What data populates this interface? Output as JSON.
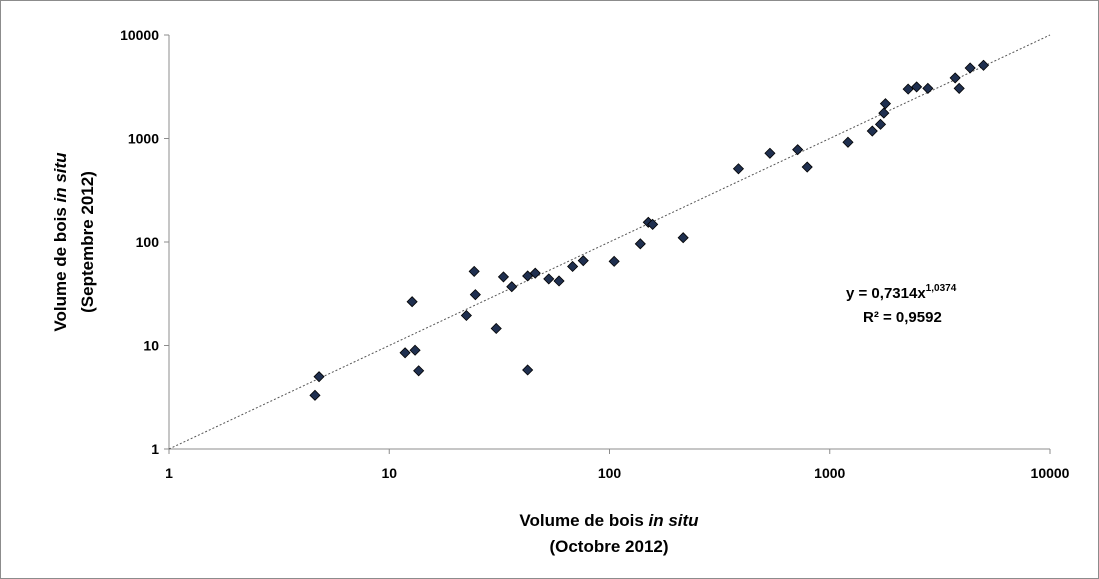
{
  "chart_data": {
    "type": "scatter",
    "x_scale": "log",
    "y_scale": "log",
    "xlim": [
      1,
      10000
    ],
    "ylim": [
      1,
      10000
    ],
    "x_ticks": [
      "1",
      "10",
      "100",
      "1000",
      "10000"
    ],
    "y_ticks": [
      "1",
      "10",
      "100",
      "1000",
      "10000"
    ],
    "xlabel": {
      "line1_prefix": "Volume de bois ",
      "line1_italic": "in situ",
      "line2": "(Octobre 2012)"
    },
    "ylabel": {
      "line1_prefix": "Volume de bois ",
      "line1_italic": "in situ",
      "line2": "(Septembre 2012)"
    },
    "grid": false,
    "marker": "diamond",
    "marker_color": "#1f2f4f",
    "trendline": {
      "type": "power",
      "a": 0.7314,
      "b": 1.0374,
      "style": "dotted",
      "color": "#555555"
    },
    "annotation": {
      "eq_prefix": "y = 0,7314x",
      "eq_exponent": "1,0374",
      "r2": "R² = 0,9592"
    },
    "points": [
      {
        "x": 4.6,
        "y": 3.3
      },
      {
        "x": 4.8,
        "y": 5.0
      },
      {
        "x": 11.8,
        "y": 8.5
      },
      {
        "x": 12.7,
        "y": 26.5
      },
      {
        "x": 13.1,
        "y": 9.0
      },
      {
        "x": 13.6,
        "y": 5.7
      },
      {
        "x": 22.4,
        "y": 19.5
      },
      {
        "x": 24.3,
        "y": 52
      },
      {
        "x": 24.6,
        "y": 31
      },
      {
        "x": 30.6,
        "y": 14.6
      },
      {
        "x": 33.0,
        "y": 46
      },
      {
        "x": 36.0,
        "y": 37
      },
      {
        "x": 42.5,
        "y": 5.8
      },
      {
        "x": 42.5,
        "y": 47
      },
      {
        "x": 46.0,
        "y": 50
      },
      {
        "x": 53.0,
        "y": 44
      },
      {
        "x": 59.0,
        "y": 42
      },
      {
        "x": 68.0,
        "y": 58
      },
      {
        "x": 76.0,
        "y": 66
      },
      {
        "x": 105,
        "y": 65
      },
      {
        "x": 138,
        "y": 96
      },
      {
        "x": 150,
        "y": 155
      },
      {
        "x": 157,
        "y": 148
      },
      {
        "x": 216,
        "y": 110
      },
      {
        "x": 385,
        "y": 510
      },
      {
        "x": 535,
        "y": 720
      },
      {
        "x": 715,
        "y": 780
      },
      {
        "x": 790,
        "y": 530
      },
      {
        "x": 1210,
        "y": 920
      },
      {
        "x": 1560,
        "y": 1180
      },
      {
        "x": 1700,
        "y": 1370
      },
      {
        "x": 1760,
        "y": 1760
      },
      {
        "x": 1790,
        "y": 2170
      },
      {
        "x": 2270,
        "y": 3000
      },
      {
        "x": 2480,
        "y": 3150
      },
      {
        "x": 2790,
        "y": 3050
      },
      {
        "x": 3710,
        "y": 3850
      },
      {
        "x": 3870,
        "y": 3050
      },
      {
        "x": 4340,
        "y": 4800
      },
      {
        "x": 4990,
        "y": 5100
      }
    ]
  }
}
